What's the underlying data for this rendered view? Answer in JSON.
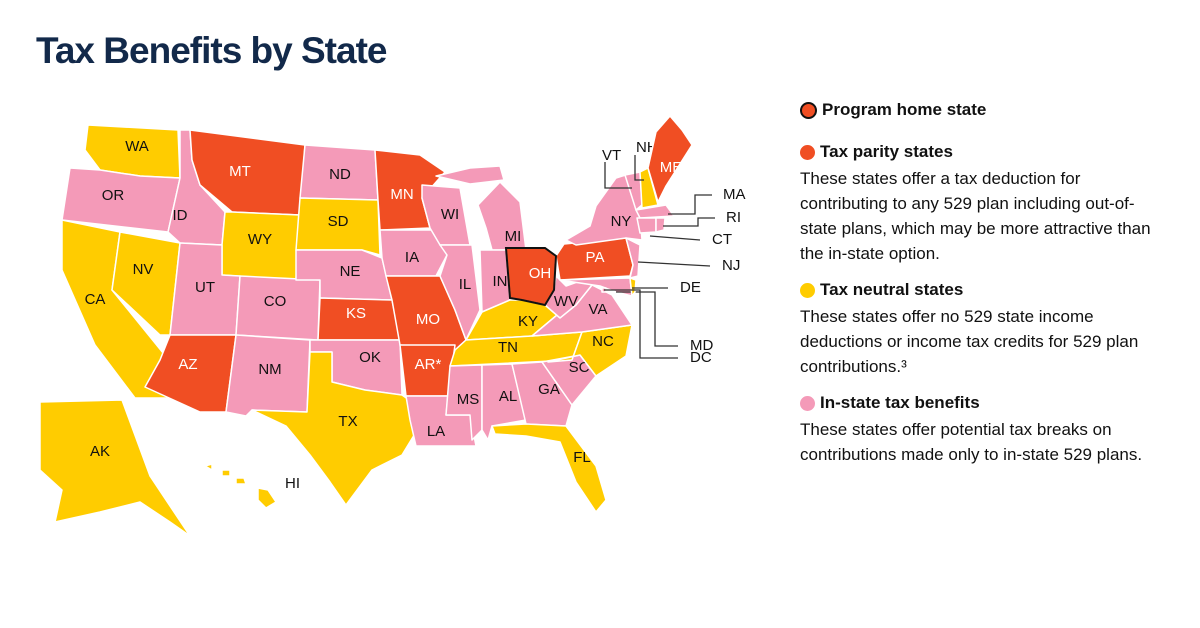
{
  "title": "Tax Benefits by State",
  "colors": {
    "parity": "#f04e23",
    "neutral": "#ffcc00",
    "instate": "#f49ab8",
    "home_border": "#111111",
    "title": "#12294a"
  },
  "legend": [
    {
      "key": "home",
      "heading": "Program home state",
      "text": ""
    },
    {
      "key": "parity",
      "heading": "Tax parity states",
      "text": "These states offer a tax deduction for contributing to any 529 plan including out-of-state plans, which may be more attractive than the in-state option."
    },
    {
      "key": "neutral",
      "heading": "Tax neutral states",
      "text": "These states offer no 529 state income deductions or income tax credits for 529 plan contributions.³"
    },
    {
      "key": "instate",
      "heading": "In-state tax benefits",
      "text": "These states offer potential tax breaks on contributions made only to in-state 529 plans."
    }
  ],
  "states": [
    {
      "abbr": "WA",
      "cat": "neutral"
    },
    {
      "abbr": "OR",
      "cat": "instate"
    },
    {
      "abbr": "CA",
      "cat": "neutral"
    },
    {
      "abbr": "NV",
      "cat": "neutral"
    },
    {
      "abbr": "ID",
      "cat": "instate"
    },
    {
      "abbr": "MT",
      "cat": "parity"
    },
    {
      "abbr": "WY",
      "cat": "neutral"
    },
    {
      "abbr": "UT",
      "cat": "instate"
    },
    {
      "abbr": "CO",
      "cat": "instate"
    },
    {
      "abbr": "AZ",
      "cat": "parity"
    },
    {
      "abbr": "NM",
      "cat": "instate"
    },
    {
      "abbr": "ND",
      "cat": "instate"
    },
    {
      "abbr": "SD",
      "cat": "neutral"
    },
    {
      "abbr": "NE",
      "cat": "instate"
    },
    {
      "abbr": "KS",
      "cat": "parity"
    },
    {
      "abbr": "OK",
      "cat": "instate"
    },
    {
      "abbr": "TX",
      "cat": "neutral"
    },
    {
      "abbr": "MN",
      "cat": "parity"
    },
    {
      "abbr": "IA",
      "cat": "instate"
    },
    {
      "abbr": "MO",
      "cat": "parity"
    },
    {
      "abbr": "AR*",
      "cat": "parity"
    },
    {
      "abbr": "LA",
      "cat": "instate"
    },
    {
      "abbr": "WI",
      "cat": "instate"
    },
    {
      "abbr": "IL",
      "cat": "instate"
    },
    {
      "abbr": "MI",
      "cat": "instate"
    },
    {
      "abbr": "IN",
      "cat": "instate"
    },
    {
      "abbr": "OH",
      "cat": "parity",
      "home": true
    },
    {
      "abbr": "KY",
      "cat": "neutral"
    },
    {
      "abbr": "TN",
      "cat": "neutral"
    },
    {
      "abbr": "MS",
      "cat": "instate"
    },
    {
      "abbr": "AL",
      "cat": "instate"
    },
    {
      "abbr": "GA",
      "cat": "instate"
    },
    {
      "abbr": "FL",
      "cat": "neutral"
    },
    {
      "abbr": "SC",
      "cat": "instate"
    },
    {
      "abbr": "NC",
      "cat": "neutral"
    },
    {
      "abbr": "VA",
      "cat": "instate"
    },
    {
      "abbr": "WV",
      "cat": "instate"
    },
    {
      "abbr": "PA",
      "cat": "parity"
    },
    {
      "abbr": "NY",
      "cat": "instate"
    },
    {
      "abbr": "NJ",
      "cat": "instate"
    },
    {
      "abbr": "MD",
      "cat": "instate"
    },
    {
      "abbr": "DE",
      "cat": "neutral"
    },
    {
      "abbr": "DC",
      "cat": "instate"
    },
    {
      "abbr": "VT",
      "cat": "instate"
    },
    {
      "abbr": "NH",
      "cat": "neutral"
    },
    {
      "abbr": "ME",
      "cat": "parity"
    },
    {
      "abbr": "MA",
      "cat": "instate"
    },
    {
      "abbr": "CT",
      "cat": "instate"
    },
    {
      "abbr": "RI",
      "cat": "instate"
    },
    {
      "abbr": "AK",
      "cat": "neutral"
    },
    {
      "abbr": "HI",
      "cat": "neutral"
    }
  ]
}
